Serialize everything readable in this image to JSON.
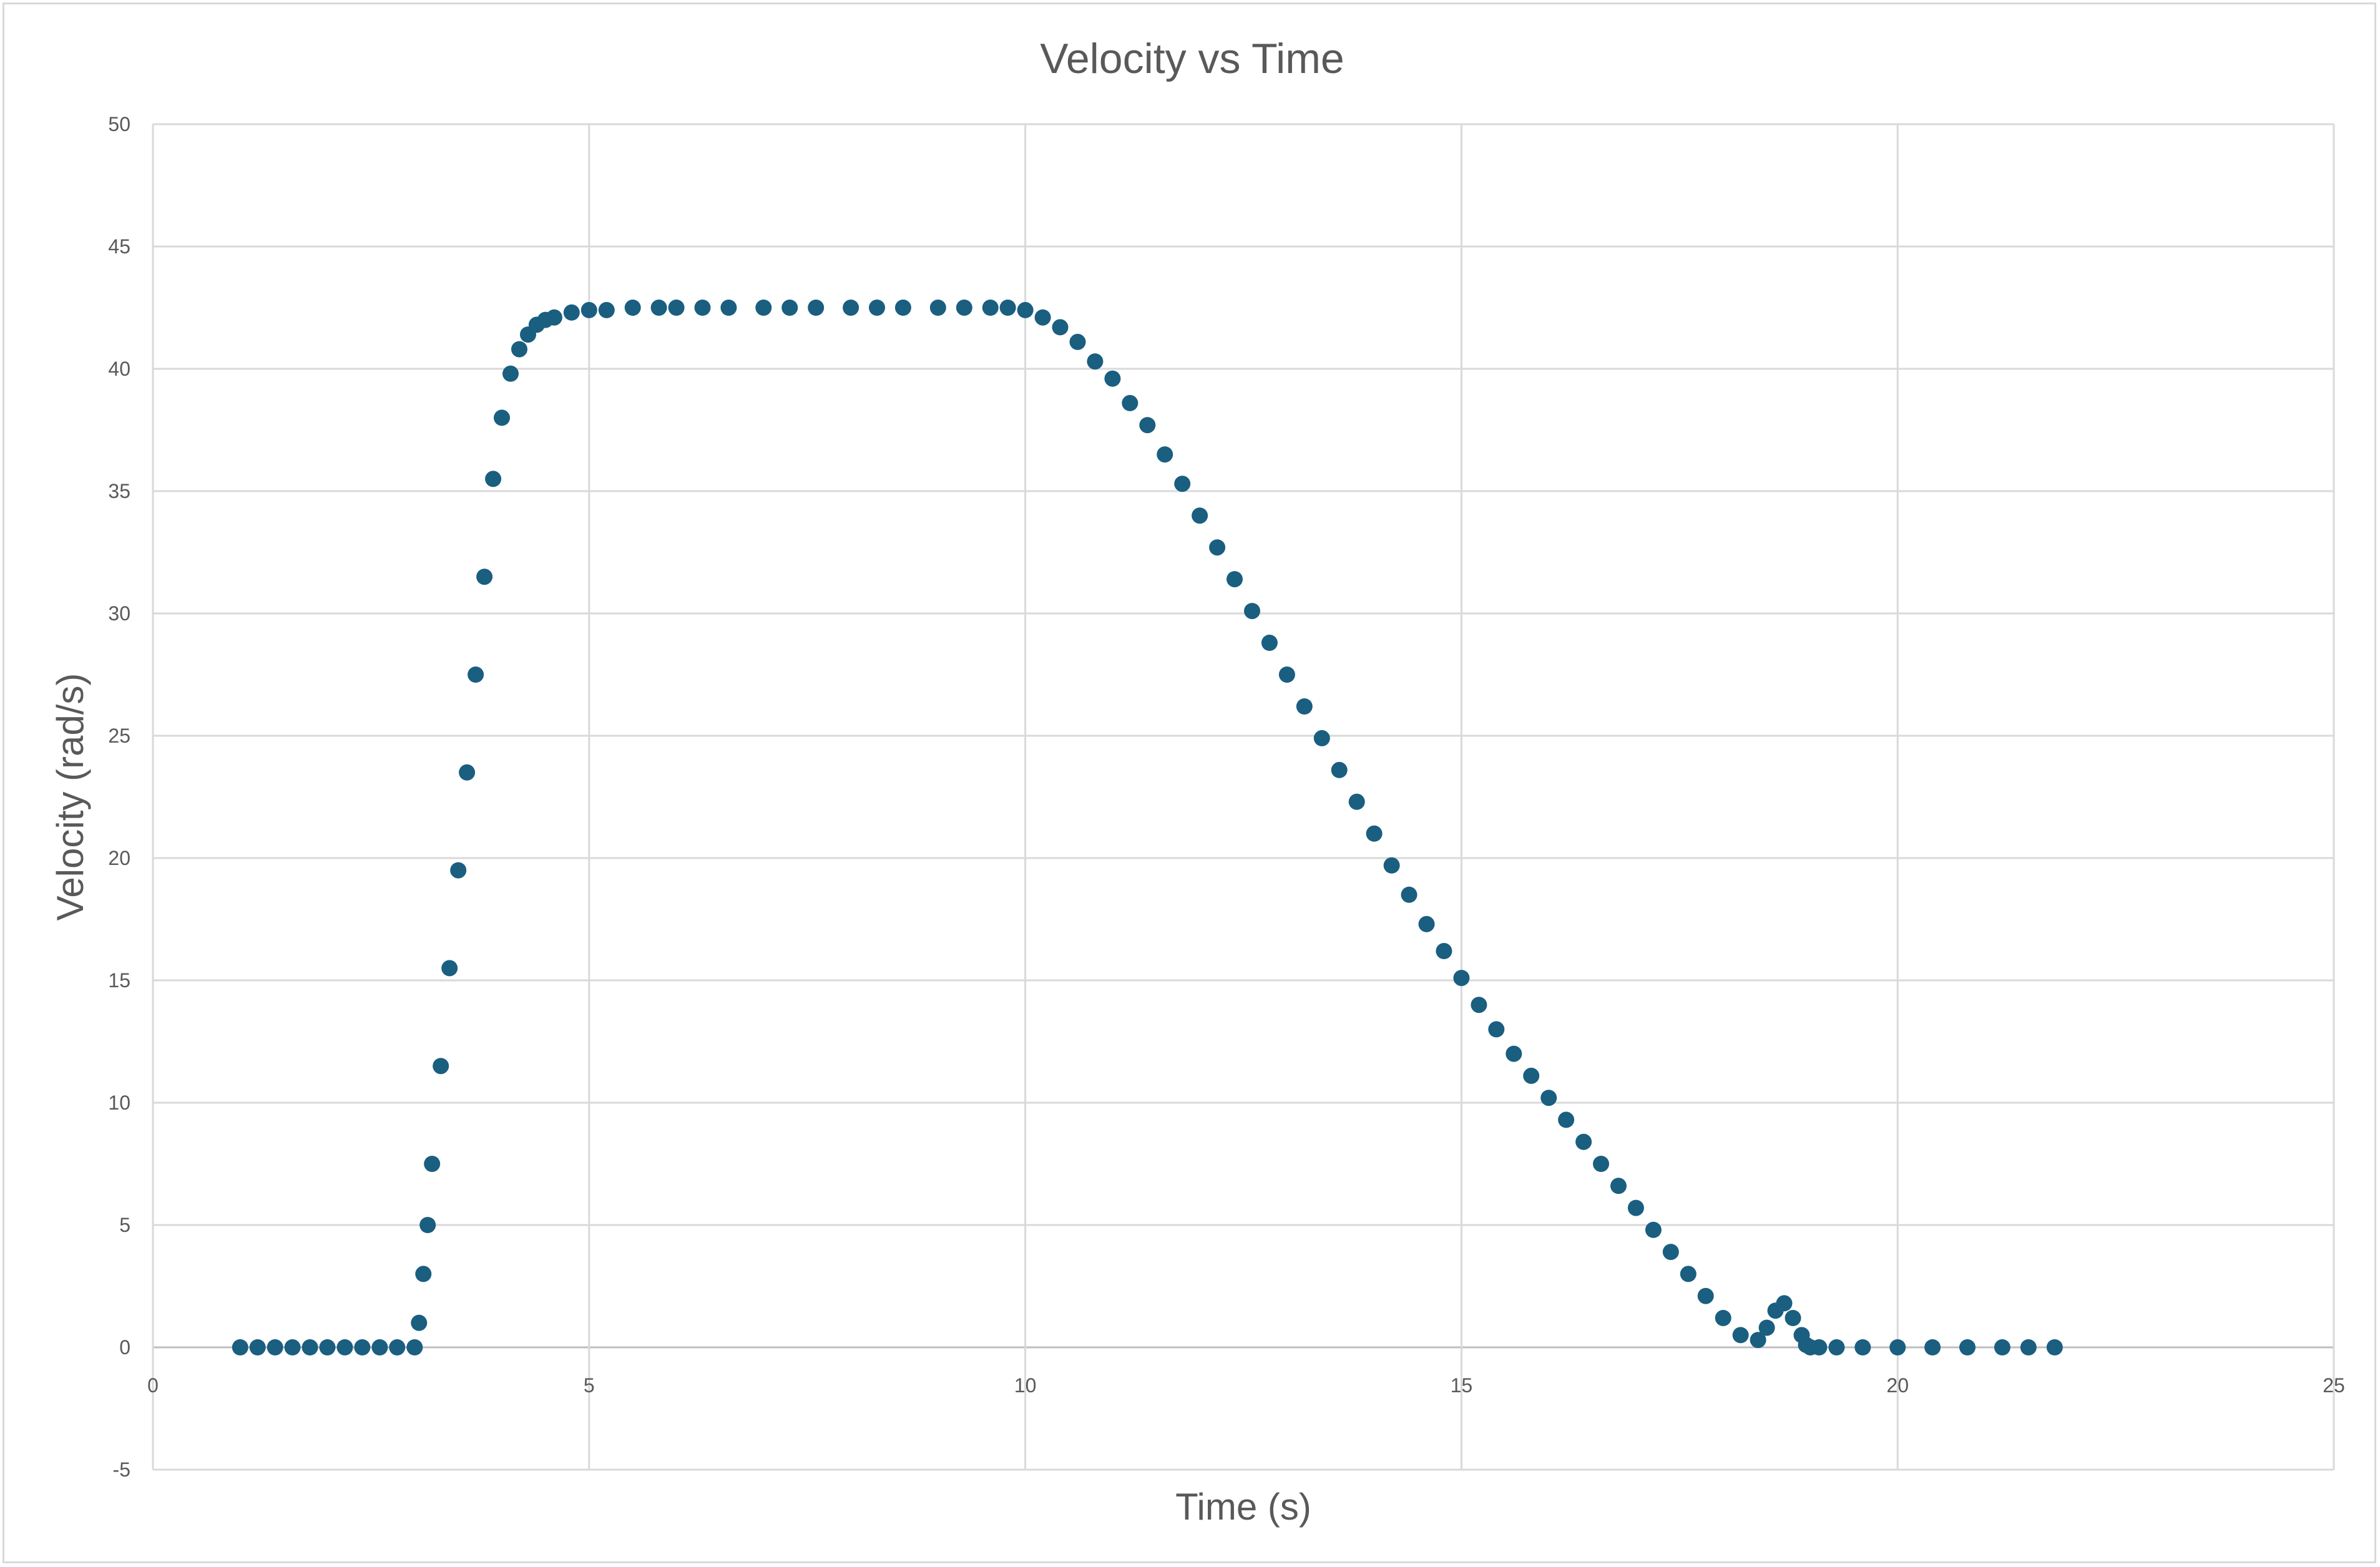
{
  "chart_data": {
    "type": "scatter",
    "title": "Velocity vs Time",
    "xlabel": "Time (s)",
    "ylabel": "Velocity (rad/s)",
    "xlim": [
      0,
      25
    ],
    "ylim": [
      -5,
      50
    ],
    "x_ticks": [
      0,
      5,
      10,
      15,
      20,
      25
    ],
    "y_ticks": [
      -5,
      0,
      5,
      10,
      15,
      20,
      25,
      30,
      35,
      40,
      45,
      50
    ],
    "x_tick_labels": [
      "0",
      "5",
      "10",
      "15",
      "20",
      "25"
    ],
    "y_tick_labels": [
      "-5",
      "0",
      "5",
      "10",
      "15",
      "20",
      "25",
      "30",
      "35",
      "40",
      "45",
      "50"
    ],
    "grid": true,
    "legend": "none",
    "marker_color": "#1a5e80",
    "series": [
      {
        "x": [
          1.0,
          1.2,
          1.4,
          1.6,
          1.8,
          2.0,
          2.2,
          2.4,
          2.6,
          2.8,
          3.0,
          3.05,
          3.1,
          3.15,
          3.2,
          3.3,
          3.4,
          3.5,
          3.6,
          3.7,
          3.8,
          3.9,
          4.0,
          4.1,
          4.2,
          4.3,
          4.4,
          4.5,
          4.6,
          4.8,
          5.0,
          5.2,
          5.5,
          5.8,
          6.0,
          6.3,
          6.6,
          7.0,
          7.3,
          7.6,
          8.0,
          8.3,
          8.6,
          9.0,
          9.3,
          9.6,
          9.8,
          10.0,
          10.2,
          10.4,
          10.6,
          10.8,
          11.0,
          11.2,
          11.4,
          11.6,
          11.8,
          12.0,
          12.2,
          12.4,
          12.6,
          12.8,
          13.0,
          13.2,
          13.4,
          13.6,
          13.8,
          14.0,
          14.2,
          14.4,
          14.6,
          14.8,
          15.0,
          15.2,
          15.4,
          15.6,
          15.8,
          16.0,
          16.2,
          16.4,
          16.6,
          16.8,
          17.0,
          17.2,
          17.4,
          17.6,
          17.8,
          18.0,
          18.2,
          18.4,
          18.5,
          18.6,
          18.7,
          18.8,
          18.9,
          18.95,
          19.0,
          19.1,
          19.3,
          19.6,
          20.0,
          20.4,
          20.8,
          21.2,
          21.5,
          21.8
        ],
        "y": [
          0,
          0,
          0,
          0,
          0,
          0,
          0,
          0,
          0,
          0,
          0,
          1.0,
          3.0,
          5.0,
          7.5,
          11.5,
          15.5,
          19.5,
          23.5,
          27.5,
          31.5,
          35.5,
          38.0,
          39.8,
          40.8,
          41.4,
          41.8,
          42.0,
          42.1,
          42.3,
          42.4,
          42.4,
          42.5,
          42.5,
          42.5,
          42.5,
          42.5,
          42.5,
          42.5,
          42.5,
          42.5,
          42.5,
          42.5,
          42.5,
          42.5,
          42.5,
          42.5,
          42.4,
          42.1,
          41.7,
          41.1,
          40.3,
          39.6,
          38.6,
          37.7,
          36.5,
          35.3,
          34.0,
          32.7,
          31.4,
          30.1,
          28.8,
          27.5,
          26.2,
          24.9,
          23.6,
          22.3,
          21.0,
          19.7,
          18.5,
          17.3,
          16.2,
          15.1,
          14.0,
          13.0,
          12.0,
          11.1,
          10.2,
          9.3,
          8.4,
          7.5,
          6.6,
          5.7,
          4.8,
          3.9,
          3.0,
          2.1,
          1.2,
          0.5,
          0.3,
          0.8,
          1.5,
          1.8,
          1.2,
          0.5,
          0.1,
          0,
          0,
          0,
          0,
          0,
          0,
          0,
          0,
          0,
          0
        ]
      }
    ]
  }
}
